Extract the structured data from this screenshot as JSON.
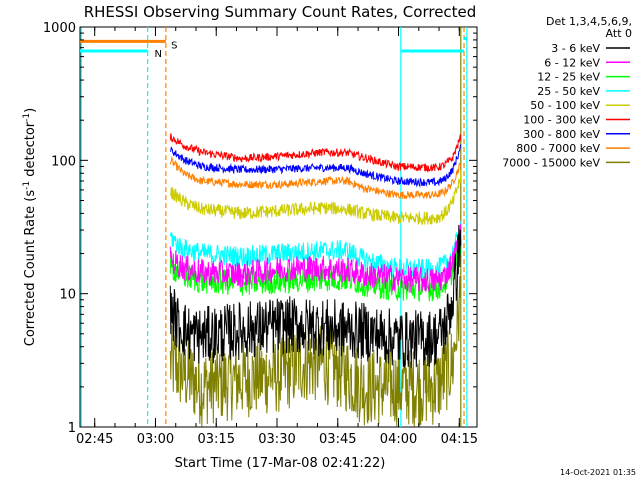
{
  "chart_data": {
    "type": "line",
    "title": "RHESSI Observing Summary Count Rates, Corrected",
    "xlabel": "Start Time (17-Mar-08 02:41:22)",
    "ylabel": "Corrected Count Rate (s⁻¹ detector⁻¹)",
    "yscale": "log",
    "ylim": [
      1,
      1000
    ],
    "xlim_minutes": [
      0,
      98
    ],
    "x_ticks": [
      {
        "label": "02:45",
        "min": 3.63
      },
      {
        "label": "03:00",
        "min": 18.63
      },
      {
        "label": "03:15",
        "min": 33.63
      },
      {
        "label": "03:30",
        "min": 48.63
      },
      {
        "label": "03:45",
        "min": 63.63
      },
      {
        "label": "04:00",
        "min": 78.63
      },
      {
        "label": "04:15",
        "min": 93.63
      }
    ],
    "y_ticks": [
      {
        "label": "1",
        "value": 1
      },
      {
        "label": "10",
        "value": 10
      },
      {
        "label": "100",
        "value": 100
      },
      {
        "label": "1000",
        "value": 1000
      }
    ],
    "legend_header": [
      "Det 1,3,4,5,6,9,",
      "Att 0"
    ],
    "legend_position": "right",
    "series": [
      {
        "name": "3 - 6 keV",
        "color": "#000000",
        "points": [
          [
            22.3,
            8.0
          ],
          [
            24,
            6.0
          ],
          [
            27,
            5.0
          ],
          [
            30,
            4.8
          ],
          [
            40,
            5.3
          ],
          [
            50,
            5.8
          ],
          [
            60,
            5.6
          ],
          [
            70,
            5.2
          ],
          [
            75,
            4.8
          ],
          [
            80,
            4.5
          ],
          [
            88,
            4.7
          ],
          [
            90,
            5.5
          ],
          [
            92,
            9.0
          ],
          [
            93,
            15.0
          ],
          [
            94,
            30.0
          ]
        ],
        "noise": 0.22
      },
      {
        "name": "6 - 12 keV",
        "color": "#ff00ff",
        "points": [
          [
            22.3,
            18.0
          ],
          [
            26,
            15.5
          ],
          [
            30,
            14.5
          ],
          [
            40,
            14.0
          ],
          [
            50,
            15.5
          ],
          [
            60,
            15.5
          ],
          [
            66,
            15.0
          ],
          [
            70,
            14.0
          ],
          [
            78,
            13.0
          ],
          [
            88,
            12.5
          ],
          [
            90,
            13.5
          ],
          [
            92,
            17.0
          ],
          [
            94,
            28.0
          ]
        ],
        "noise": 0.1
      },
      {
        "name": "12 - 25 keV",
        "color": "#00ff00",
        "points": [
          [
            22.3,
            16.0
          ],
          [
            26,
            13.5
          ],
          [
            30,
            12.5
          ],
          [
            40,
            12.0
          ],
          [
            50,
            12.5
          ],
          [
            60,
            13.0
          ],
          [
            66,
            13.0
          ],
          [
            70,
            12.0
          ],
          [
            78,
            11.0
          ],
          [
            88,
            11.0
          ],
          [
            90,
            12.0
          ],
          [
            92,
            15.0
          ],
          [
            94,
            25.0
          ]
        ],
        "noise": 0.1
      },
      {
        "name": "25 - 50 keV",
        "color": "#00ffff",
        "points": [
          [
            22.3,
            27.0
          ],
          [
            25,
            22.0
          ],
          [
            30,
            20.0
          ],
          [
            40,
            19.0
          ],
          [
            50,
            20.0
          ],
          [
            60,
            21.0
          ],
          [
            66,
            21.0
          ],
          [
            70,
            18.0
          ],
          [
            78,
            15.5
          ],
          [
            88,
            15.0
          ],
          [
            90,
            16.5
          ],
          [
            92,
            20.0
          ],
          [
            94,
            30.0
          ]
        ],
        "noise": 0.08
      },
      {
        "name": "50 - 100 keV",
        "color": "#cccc00",
        "points": [
          [
            22.3,
            58.0
          ],
          [
            26,
            48.0
          ],
          [
            30,
            43.0
          ],
          [
            40,
            40.0
          ],
          [
            50,
            42.0
          ],
          [
            60,
            44.0
          ],
          [
            66,
            43.0
          ],
          [
            70,
            40.0
          ],
          [
            78,
            37.0
          ],
          [
            88,
            37.0
          ],
          [
            90,
            40.0
          ],
          [
            92,
            48.0
          ],
          [
            94,
            75.0
          ]
        ],
        "noise": 0.05
      },
      {
        "name": "100 - 300 keV",
        "color": "#ff0000",
        "points": [
          [
            22.3,
            150.0
          ],
          [
            26,
            128.0
          ],
          [
            30,
            115.0
          ],
          [
            40,
            103.0
          ],
          [
            50,
            108.0
          ],
          [
            60,
            115.0
          ],
          [
            66,
            114.0
          ],
          [
            70,
            105.0
          ],
          [
            78,
            90.0
          ],
          [
            88,
            88.0
          ],
          [
            90,
            92.0
          ],
          [
            92,
            105.0
          ],
          [
            94,
            150.0
          ]
        ],
        "noise": 0.03
      },
      {
        "name": "300 - 800 keV",
        "color": "#0000ff",
        "points": [
          [
            22.3,
            120.0
          ],
          [
            26,
            100.0
          ],
          [
            30,
            90.0
          ],
          [
            40,
            85.0
          ],
          [
            50,
            86.0
          ],
          [
            60,
            88.0
          ],
          [
            66,
            88.0
          ],
          [
            70,
            80.0
          ],
          [
            78,
            70.0
          ],
          [
            88,
            68.0
          ],
          [
            90,
            72.0
          ],
          [
            92,
            85.0
          ],
          [
            94,
            125.0
          ]
        ],
        "noise": 0.03
      },
      {
        "name": "800 - 7000 keV",
        "color": "#ff8000",
        "points": [
          [
            22.3,
            100.0
          ],
          [
            26,
            78.0
          ],
          [
            30,
            70.0
          ],
          [
            40,
            66.0
          ],
          [
            50,
            66.0
          ],
          [
            60,
            70.0
          ],
          [
            66,
            70.0
          ],
          [
            70,
            62.0
          ],
          [
            78,
            55.0
          ],
          [
            88,
            55.0
          ],
          [
            90,
            58.0
          ],
          [
            92,
            68.0
          ],
          [
            94,
            95.0
          ]
        ],
        "noise": 0.03
      },
      {
        "name": "7000 - 15000 keV",
        "color": "#808000",
        "points": [
          [
            22.3,
            3.0
          ],
          [
            30,
            2.0
          ],
          [
            40,
            2.3
          ],
          [
            50,
            2.5
          ],
          [
            55,
            3.0
          ],
          [
            60,
            3.0
          ],
          [
            66,
            2.5
          ],
          [
            70,
            2.0
          ],
          [
            78,
            2.0
          ],
          [
            88,
            2.0
          ],
          [
            92,
            3.0
          ],
          [
            94,
            10.0
          ]
        ],
        "noise": 0.3
      }
    ],
    "annotations": [
      {
        "text": "S",
        "color": "#ff8000",
        "x_min": 22.0,
        "y_value": 750
      },
      {
        "text": "N",
        "color": "#00ffff",
        "x_min": 17.9,
        "y_value": 650
      }
    ],
    "flags": [
      {
        "color": "#ff8000",
        "dashed": false,
        "y_value": 780,
        "x_range": [
          0,
          21.2
        ]
      },
      {
        "color": "#00ffff",
        "dashed": false,
        "y_value": 660,
        "x_range": [
          0,
          16.7
        ]
      },
      {
        "color": "#00ffff",
        "dashed": false,
        "y_value": 660,
        "x_range": [
          79.2,
          94.8
        ]
      },
      {
        "color": "#00ffff",
        "dashed": false,
        "y_value": 820,
        "x_range": [
          94.7,
          95.5
        ]
      }
    ],
    "markers": [
      {
        "color": "#00ffff",
        "dashed": false,
        "x_min": 0.3
      },
      {
        "color": "#00ffff",
        "dashed": true,
        "x_min": 16.7
      },
      {
        "color": "#ff8000",
        "dashed": true,
        "x_min": 21.2
      },
      {
        "color": "#00ffff",
        "dashed": false,
        "x_min": 79.2
      },
      {
        "color": "#808000",
        "dashed": false,
        "x_min": 94.0
      },
      {
        "color": "#ff8000",
        "dashed": true,
        "x_min": 94.8
      },
      {
        "color": "#00ffff",
        "dashed": false,
        "x_min": 95.5
      }
    ]
  },
  "footer": {
    "timestamp": "14-Oct-2021 01:35"
  }
}
